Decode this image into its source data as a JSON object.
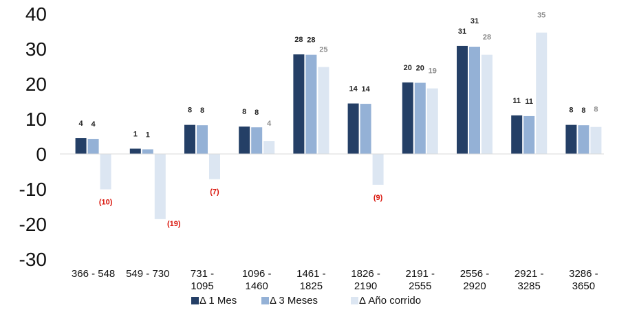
{
  "chart_data": {
    "type": "bar",
    "categories": [
      [
        "366 - 548"
      ],
      [
        "549 - 730"
      ],
      [
        "731 -",
        "1095"
      ],
      [
        "1096 -",
        "1460"
      ],
      [
        "1461 -",
        "1825"
      ],
      [
        "1826 -",
        "2190"
      ],
      [
        "2191 -",
        "2555"
      ],
      [
        "2556 -",
        "2920"
      ],
      [
        "2921 -",
        "3285"
      ],
      [
        "3286 -",
        "3650"
      ]
    ],
    "series": [
      {
        "name": "Δ 1 Mes",
        "color": "#243f66",
        "label_color": "#222222",
        "values": [
          4.5,
          1.5,
          8.3,
          7.8,
          28.4,
          14.4,
          20.4,
          30.8,
          11.0,
          8.3
        ],
        "labels": [
          "4",
          "1",
          "8",
          "8",
          "28",
          "14",
          "20",
          "31",
          "11",
          "8"
        ]
      },
      {
        "name": "Δ 3 Meses",
        "color": "#94b1d6",
        "label_color": "#222222",
        "values": [
          4.3,
          1.3,
          8.2,
          7.6,
          28.3,
          14.3,
          20.3,
          30.6,
          10.8,
          8.2
        ],
        "labels": [
          "4",
          "1",
          "8",
          "8",
          "28",
          "14",
          "20",
          "31",
          "11",
          "8"
        ]
      },
      {
        "name": "Δ Año corrido",
        "color": "#dce6f2",
        "label_color": "#8c8c8c",
        "negative_label_color": "#d9150b",
        "values": [
          -10.1,
          -18.6,
          -7.2,
          3.7,
          24.8,
          -8.8,
          18.7,
          28.3,
          34.6,
          7.7
        ],
        "labels": [
          "(10)",
          "(19)",
          "(7)",
          "4",
          "25",
          "(9)",
          "19",
          "28",
          "35",
          "8"
        ]
      }
    ],
    "yticks": [
      "40",
      "30",
      "20",
      "10",
      "0",
      "-10",
      "-20",
      "-30"
    ],
    "ylim": [
      -30,
      40
    ],
    "grid": false,
    "legend_position": "bottom",
    "title": "",
    "xlabel": "",
    "ylabel": ""
  }
}
